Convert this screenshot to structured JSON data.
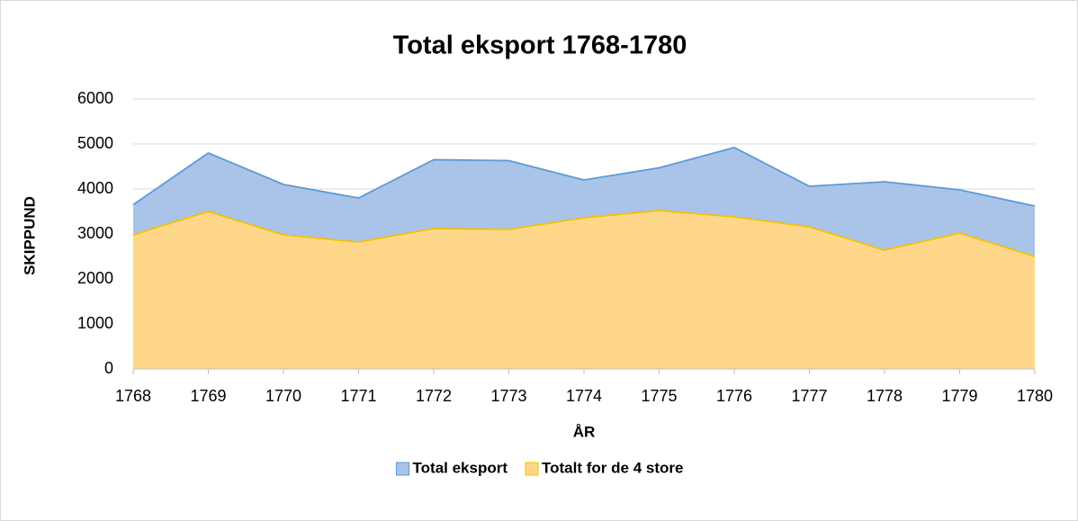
{
  "chart_data": {
    "type": "area",
    "title": "Total eksport 1768-1780",
    "x_label": "ÅR",
    "y_label": "SKIPPUND",
    "categories": [
      "1768",
      "1769",
      "1770",
      "1771",
      "1772",
      "1773",
      "1774",
      "1775",
      "1776",
      "1777",
      "1778",
      "1779",
      "1780"
    ],
    "series": [
      {
        "name": "Total eksport",
        "color": "#5b9bd5",
        "fill": "#a9c4e8",
        "values": [
          3650,
          4800,
          4100,
          3800,
          4650,
          4630,
          4200,
          4470,
          4920,
          4060,
          4160,
          3980,
          3620
        ]
      },
      {
        "name": "Totalt for de 4 store",
        "color": "#f5c000",
        "fill": "#fed78a",
        "values": [
          2980,
          3500,
          2980,
          2820,
          3120,
          3100,
          3360,
          3520,
          3380,
          3160,
          2640,
          3020,
          2500
        ]
      }
    ],
    "ylim": [
      0,
      6000
    ],
    "yticks": [
      0,
      1000,
      2000,
      3000,
      4000,
      5000,
      6000
    ],
    "grid": true,
    "legend": "bottom"
  }
}
